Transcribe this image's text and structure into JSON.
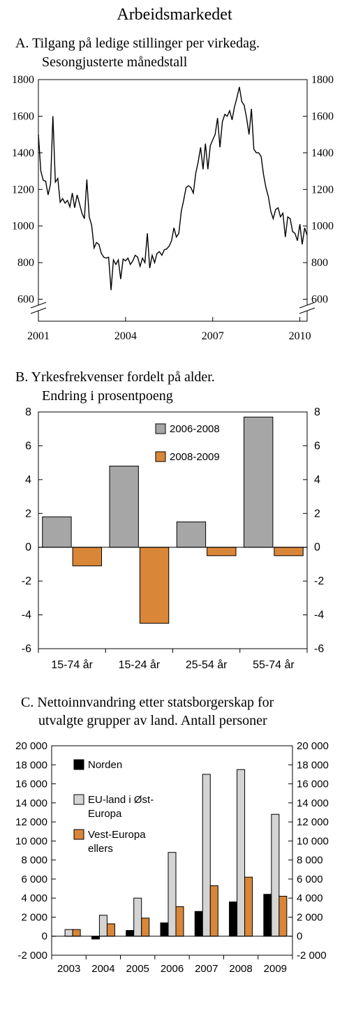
{
  "page_title": "Arbeidsmarkedet",
  "chart_data": [
    {
      "type": "line",
      "title_line1": "A. Tilgang på ledige stillinger per virkedag.",
      "title_line2": "Sesongjusterte månedstall",
      "x_tick_labels": [
        "2001",
        "2004",
        "2007",
        "2010"
      ],
      "y_ticks": [
        600,
        800,
        1000,
        1200,
        1400,
        1600,
        1800
      ],
      "y_tick_labels": [
        "600",
        "800",
        "1000",
        "1200",
        "1400",
        "1600",
        "1800"
      ],
      "ylim": [
        480,
        1800
      ],
      "xlim": [
        2001.0,
        2010.25
      ],
      "axis_break": true,
      "series": [
        {
          "x": [
            2001.0,
            2001.083,
            2001.167,
            2001.25,
            2001.333,
            2001.417,
            2001.5,
            2001.583,
            2001.667,
            2001.75,
            2001.833,
            2001.917,
            2002.0,
            2002.083,
            2002.167,
            2002.25,
            2002.333,
            2002.417,
            2002.5,
            2002.583,
            2002.667,
            2002.75,
            2002.833,
            2002.917,
            2003.0,
            2003.083,
            2003.167,
            2003.25,
            2003.333,
            2003.417,
            2003.5,
            2003.583,
            2003.667,
            2003.75,
            2003.833,
            2003.917,
            2004.0,
            2004.083,
            2004.167,
            2004.25,
            2004.333,
            2004.417,
            2004.5,
            2004.583,
            2004.667,
            2004.75,
            2004.833,
            2004.917,
            2005.0,
            2005.083,
            2005.167,
            2005.25,
            2005.333,
            2005.417,
            2005.5,
            2005.583,
            2005.667,
            2005.75,
            2005.833,
            2005.917,
            2006.0,
            2006.083,
            2006.167,
            2006.25,
            2006.333,
            2006.417,
            2006.5,
            2006.583,
            2006.667,
            2006.75,
            2006.833,
            2006.917,
            2007.0,
            2007.083,
            2007.167,
            2007.25,
            2007.333,
            2007.417,
            2007.5,
            2007.583,
            2007.667,
            2007.75,
            2007.833,
            2007.917,
            2008.0,
            2008.083,
            2008.167,
            2008.25,
            2008.333,
            2008.417,
            2008.5,
            2008.583,
            2008.667,
            2008.75,
            2008.833,
            2008.917,
            2009.0,
            2009.083,
            2009.167,
            2009.25,
            2009.333,
            2009.417,
            2009.5,
            2009.583,
            2009.667,
            2009.75,
            2009.833,
            2009.917,
            2010.0,
            2010.083,
            2010.167,
            2010.25
          ],
          "values": [
            1500,
            1300,
            1250,
            1245,
            1170,
            1230,
            1600,
            1240,
            1260,
            1130,
            1150,
            1125,
            1140,
            1105,
            1180,
            1100,
            1170,
            1120,
            1070,
            1040,
            1255,
            1050,
            1005,
            880,
            910,
            900,
            850,
            830,
            825,
            830,
            650,
            815,
            790,
            815,
            710,
            820,
            810,
            825,
            790,
            810,
            840,
            830,
            780,
            825,
            800,
            960,
            770,
            840,
            800,
            850,
            860,
            840,
            870,
            875,
            890,
            920,
            990,
            940,
            960,
            1080,
            1140,
            1210,
            1220,
            1210,
            1180,
            1290,
            1350,
            1430,
            1310,
            1450,
            1310,
            1440,
            1470,
            1500,
            1590,
            1430,
            1570,
            1610,
            1600,
            1630,
            1580,
            1650,
            1700,
            1760,
            1680,
            1660,
            1590,
            1500,
            1640,
            1420,
            1400,
            1400,
            1380,
            1280,
            1210,
            1160,
            1080,
            1040,
            1090,
            1100,
            1050,
            1070,
            940,
            1050,
            1040,
            970,
            960,
            920,
            1010,
            900,
            990,
            950
          ]
        }
      ]
    },
    {
      "type": "bar",
      "title_line1": "B. Yrkesfrekvenser fordelt på alder.",
      "title_line2": "Endring i prosentpoeng",
      "categories": [
        "15-74 år",
        "15-24 år",
        "25-54 år",
        "55-74 år"
      ],
      "y_ticks": [
        -6,
        -4,
        -2,
        0,
        2,
        4,
        6,
        8
      ],
      "y_tick_labels": [
        "-6",
        "-4",
        "-2",
        "0",
        "2",
        "4",
        "6",
        "8"
      ],
      "ylim": [
        -6,
        8
      ],
      "legend_position": "upper-right inside",
      "series": [
        {
          "name": "2006-2008",
          "color": "#a6a6a6",
          "values": [
            1.8,
            4.8,
            1.5,
            7.7
          ]
        },
        {
          "name": "2008-2009",
          "color": "#d98639",
          "values": [
            -1.1,
            -4.5,
            -0.5,
            -0.5
          ]
        }
      ]
    },
    {
      "type": "bar",
      "title_line1": "C.  Nettoinnvandring etter statsborgerskap for",
      "title_line2": "utvalgte grupper av land. Antall personer",
      "categories": [
        "2003",
        "2004",
        "2005",
        "2006",
        "2007",
        "2008",
        "2009"
      ],
      "y_ticks": [
        -2000,
        0,
        2000,
        4000,
        6000,
        8000,
        10000,
        12000,
        14000,
        16000,
        18000,
        20000
      ],
      "y_tick_labels": [
        "-2 000",
        "0",
        "2 000",
        "4 000",
        "6 000",
        "8 000",
        "10 000",
        "12 000",
        "14 000",
        "16 000",
        "18 000",
        "20 000"
      ],
      "ylim": [
        -2000,
        20000
      ],
      "legend_position": "upper-left inside",
      "series": [
        {
          "name": "Norden",
          "color": "#000000",
          "values": [
            0,
            -300,
            600,
            1400,
            2600,
            3600,
            4400
          ]
        },
        {
          "name_line1": "EU-land i Øst-",
          "name_line2": "Europa",
          "color": "#d4d4d4",
          "values": [
            700,
            2200,
            4000,
            8800,
            17000,
            17500,
            12800
          ]
        },
        {
          "name_line1": "Vest-Europa",
          "name_line2": "ellers",
          "color": "#d98639",
          "values": [
            700,
            1300,
            1900,
            3100,
            5300,
            6200,
            4200
          ]
        }
      ]
    }
  ]
}
